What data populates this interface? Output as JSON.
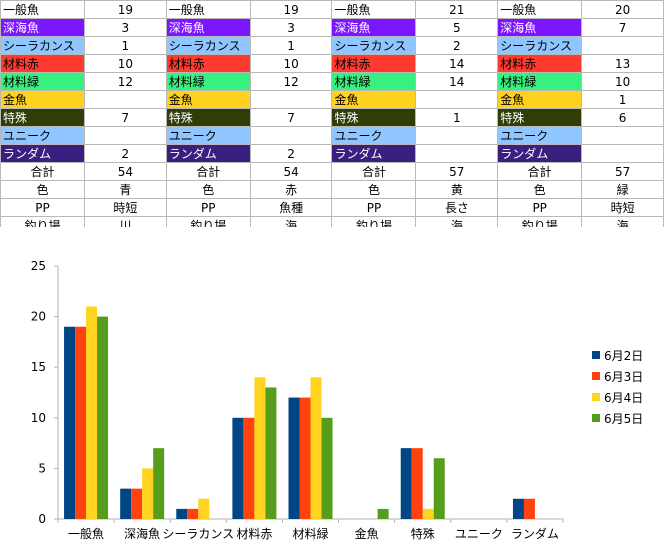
{
  "sheet": {
    "categories": [
      {
        "label": "一般魚",
        "fill": "#ffffff",
        "text": "#000000"
      },
      {
        "label": "深海魚",
        "fill": "#7b16ff",
        "text": "#ffffff"
      },
      {
        "label": "シーラカンス",
        "fill": "#8fc6ff",
        "text": "#000000"
      },
      {
        "label": "材料赤",
        "fill": "#ff3a2f",
        "text": "#000000"
      },
      {
        "label": "材料緑",
        "fill": "#37f07e",
        "text": "#000000"
      },
      {
        "label": "金魚",
        "fill": "#ffd21f",
        "text": "#000000"
      },
      {
        "label": "特殊",
        "fill": "#2f3d07",
        "text": "#ffffff"
      },
      {
        "label": "ユニーク",
        "fill": "#8fc6ff",
        "text": "#000000"
      },
      {
        "label": "ランダム",
        "fill": "#3a1f80",
        "text": "#ffffff"
      }
    ],
    "blocks": [
      {
        "values": [
          "19",
          "3",
          "1",
          "10",
          "12",
          "",
          "7",
          "",
          "2"
        ],
        "total_label": "合計",
        "total": "54",
        "color_label": "色",
        "color": "青",
        "pp_label": "PP",
        "pp": "時短",
        "spot_label": "釣り場",
        "spot": "川"
      },
      {
        "values": [
          "19",
          "3",
          "1",
          "10",
          "12",
          "",
          "7",
          "",
          "2"
        ],
        "total_label": "合計",
        "total": "54",
        "color_label": "色",
        "color": "赤",
        "pp_label": "PP",
        "pp": "魚種",
        "spot_label": "釣り場",
        "spot": "海"
      },
      {
        "values": [
          "21",
          "5",
          "2",
          "14",
          "14",
          "",
          "1",
          "",
          ""
        ],
        "total_label": "合計",
        "total": "57",
        "color_label": "色",
        "color": "黄",
        "pp_label": "PP",
        "pp": "長さ",
        "spot_label": "釣り場",
        "spot": "海"
      },
      {
        "values": [
          "20",
          "7",
          "",
          "13",
          "10",
          "1",
          "6",
          "",
          ""
        ],
        "total_label": "合計",
        "total": "57",
        "color_label": "色",
        "color": "緑",
        "pp_label": "PP",
        "pp": "時短",
        "spot_label": "釣り場",
        "spot": "海"
      }
    ]
  },
  "chart_data": {
    "type": "bar",
    "categories": [
      "一般魚",
      "深海魚",
      "シーラカンス",
      "材料赤",
      "材料緑",
      "金魚",
      "特殊",
      "ユニーク",
      "ランダム"
    ],
    "series": [
      {
        "name": "6月2日",
        "color": "#004586",
        "values": [
          19,
          3,
          1,
          10,
          12,
          0,
          7,
          0,
          2
        ]
      },
      {
        "name": "6月3日",
        "color": "#ff420e",
        "values": [
          19,
          3,
          1,
          10,
          12,
          0,
          7,
          0,
          2
        ]
      },
      {
        "name": "6月4日",
        "color": "#ffd320",
        "values": [
          21,
          5,
          2,
          14,
          14,
          0,
          1,
          0,
          0
        ]
      },
      {
        "name": "6月5日",
        "color": "#579d1c",
        "values": [
          20,
          7,
          0,
          13,
          10,
          1,
          6,
          0,
          0
        ]
      }
    ],
    "ylim": [
      0,
      25
    ],
    "yticks": [
      "0",
      "5",
      "10",
      "15",
      "20",
      "25"
    ],
    "grid": false,
    "legend": "right"
  }
}
